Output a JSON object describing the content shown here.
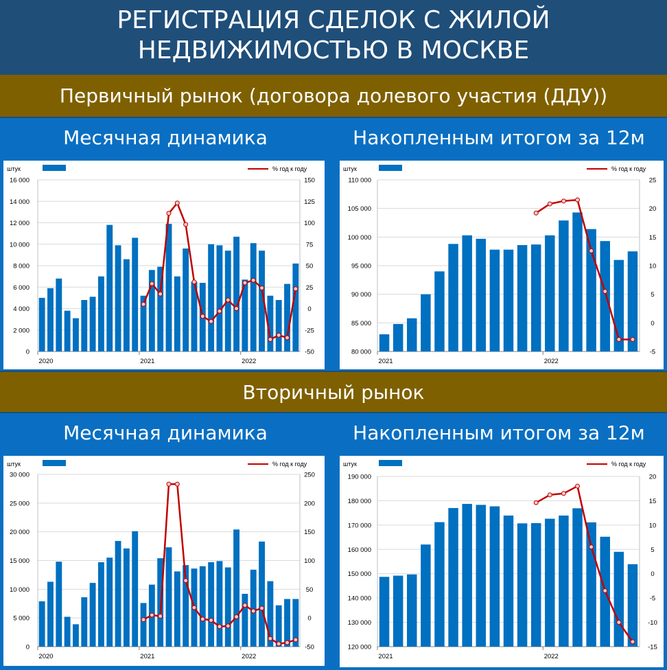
{
  "header": {
    "title_line1": "РЕГИСТРАЦИЯ СДЕЛОК С ЖИЛОЙ",
    "title_line2": "НЕДВИЖИМОСТЬЮ В МОСКВЕ"
  },
  "primary": {
    "section_title": "Первичный рынок (договора долевого участия (ДДУ))",
    "left_title": "Месячная динамика",
    "right_title": "Накопленным итогом за 12м"
  },
  "secondary": {
    "section_title": "Вторичный рынок",
    "left_title": "Месячная динамика",
    "right_title": "Накопленным итогом за 12м"
  },
  "colors": {
    "bar": "#0070c0",
    "line": "#c00000",
    "marker_fill": "#f4c7c3"
  },
  "chart_data": [
    {
      "id": "p1",
      "type": "bar",
      "title": "Первичный рынок — Месячная динамика",
      "ylabel_left": "штук",
      "legend_line": "% год к году",
      "yleft": [
        0,
        16000
      ],
      "yleft_step": 2000,
      "yright": [
        -50,
        150
      ],
      "yright_step": 25,
      "x_labels": [
        {
          "index": 0,
          "label": "2020"
        },
        {
          "index": 12,
          "label": "2021"
        },
        {
          "index": 24,
          "label": "2022"
        }
      ],
      "values": [
        5000,
        5900,
        6800,
        3800,
        3100,
        4800,
        5100,
        7000,
        11800,
        9900,
        8600,
        10600,
        5200,
        7600,
        7900,
        11900,
        7000,
        9600,
        6500,
        6400,
        10000,
        9900,
        9400,
        10700,
        6700,
        10100,
        9400,
        5200,
        4800,
        6300,
        8200
      ],
      "line": [
        null,
        null,
        null,
        null,
        null,
        null,
        null,
        null,
        null,
        null,
        null,
        null,
        5,
        29,
        17,
        111,
        123,
        98,
        31,
        -9,
        -15,
        -3,
        10,
        0,
        30,
        33,
        24,
        -36,
        -31,
        -34,
        23
      ]
    },
    {
      "id": "p2",
      "type": "bar",
      "title": "Первичный рынок — Накопленным итогом за 12м",
      "ylabel_left": "штук",
      "legend_line": "% год к году",
      "yleft": [
        80000,
        110000
      ],
      "yleft_step": 5000,
      "yright": [
        -5,
        25
      ],
      "yright_step": 5,
      "x_labels": [
        {
          "index": 0,
          "label": "2021"
        },
        {
          "index": 12,
          "label": "2022"
        }
      ],
      "values": [
        83000,
        84800,
        85800,
        90000,
        94000,
        98800,
        100300,
        99700,
        97800,
        97800,
        98600,
        98700,
        100300,
        102900,
        104300,
        101400,
        99300,
        96000,
        97500
      ],
      "line": [
        null,
        null,
        null,
        null,
        null,
        null,
        null,
        null,
        null,
        null,
        null,
        19.2,
        20.8,
        21.3,
        21.5,
        12.6,
        5.5,
        -2.9,
        -2.9
      ]
    },
    {
      "id": "s1",
      "type": "bar",
      "title": "Вторичный рынок — Месячная динамика",
      "ylabel_left": "штук",
      "legend_line": "% год к году",
      "yleft": [
        0,
        30000
      ],
      "yleft_step": 5000,
      "yright": [
        -50,
        250
      ],
      "yright_step": 50,
      "x_labels": [
        {
          "index": 0,
          "label": "2020"
        },
        {
          "index": 12,
          "label": "2021"
        },
        {
          "index": 24,
          "label": "2022"
        }
      ],
      "values": [
        7900,
        11300,
        14800,
        5200,
        3900,
        8600,
        11100,
        14700,
        15500,
        18400,
        17100,
        20100,
        7600,
        10800,
        15400,
        17300,
        13100,
        14200,
        13600,
        14000,
        14700,
        14900,
        13800,
        20400,
        9200,
        13400,
        18300,
        11400,
        7200,
        8300,
        8300
      ],
      "line": [
        null,
        null,
        null,
        null,
        null,
        null,
        null,
        null,
        null,
        null,
        null,
        null,
        -3,
        5,
        3,
        233,
        233,
        65,
        18,
        -2,
        -4,
        -15,
        -14,
        2,
        22,
        12,
        17,
        -36,
        -45,
        -43,
        -38
      ]
    },
    {
      "id": "s2",
      "type": "bar",
      "title": "Вторичный рынок — Накопленным итогом за 12м",
      "ylabel_left": "штук",
      "legend_line": "% год к году",
      "yleft": [
        120000,
        190000
      ],
      "yleft_step": 10000,
      "yright": [
        -15,
        20
      ],
      "yright_step": 5,
      "x_labels": [
        {
          "index": 0,
          "label": "2021"
        },
        {
          "index": 12,
          "label": "2022"
        }
      ],
      "values": [
        148700,
        149200,
        149700,
        162000,
        171200,
        177000,
        178700,
        178300,
        177700,
        173900,
        170700,
        170800,
        172600,
        173900,
        176900,
        171100,
        165200,
        159000,
        153900
      ],
      "line": [
        null,
        null,
        null,
        null,
        null,
        null,
        null,
        null,
        null,
        null,
        null,
        14.6,
        16.2,
        16.5,
        18.0,
        5.5,
        -3.5,
        -10,
        -14
      ]
    }
  ]
}
